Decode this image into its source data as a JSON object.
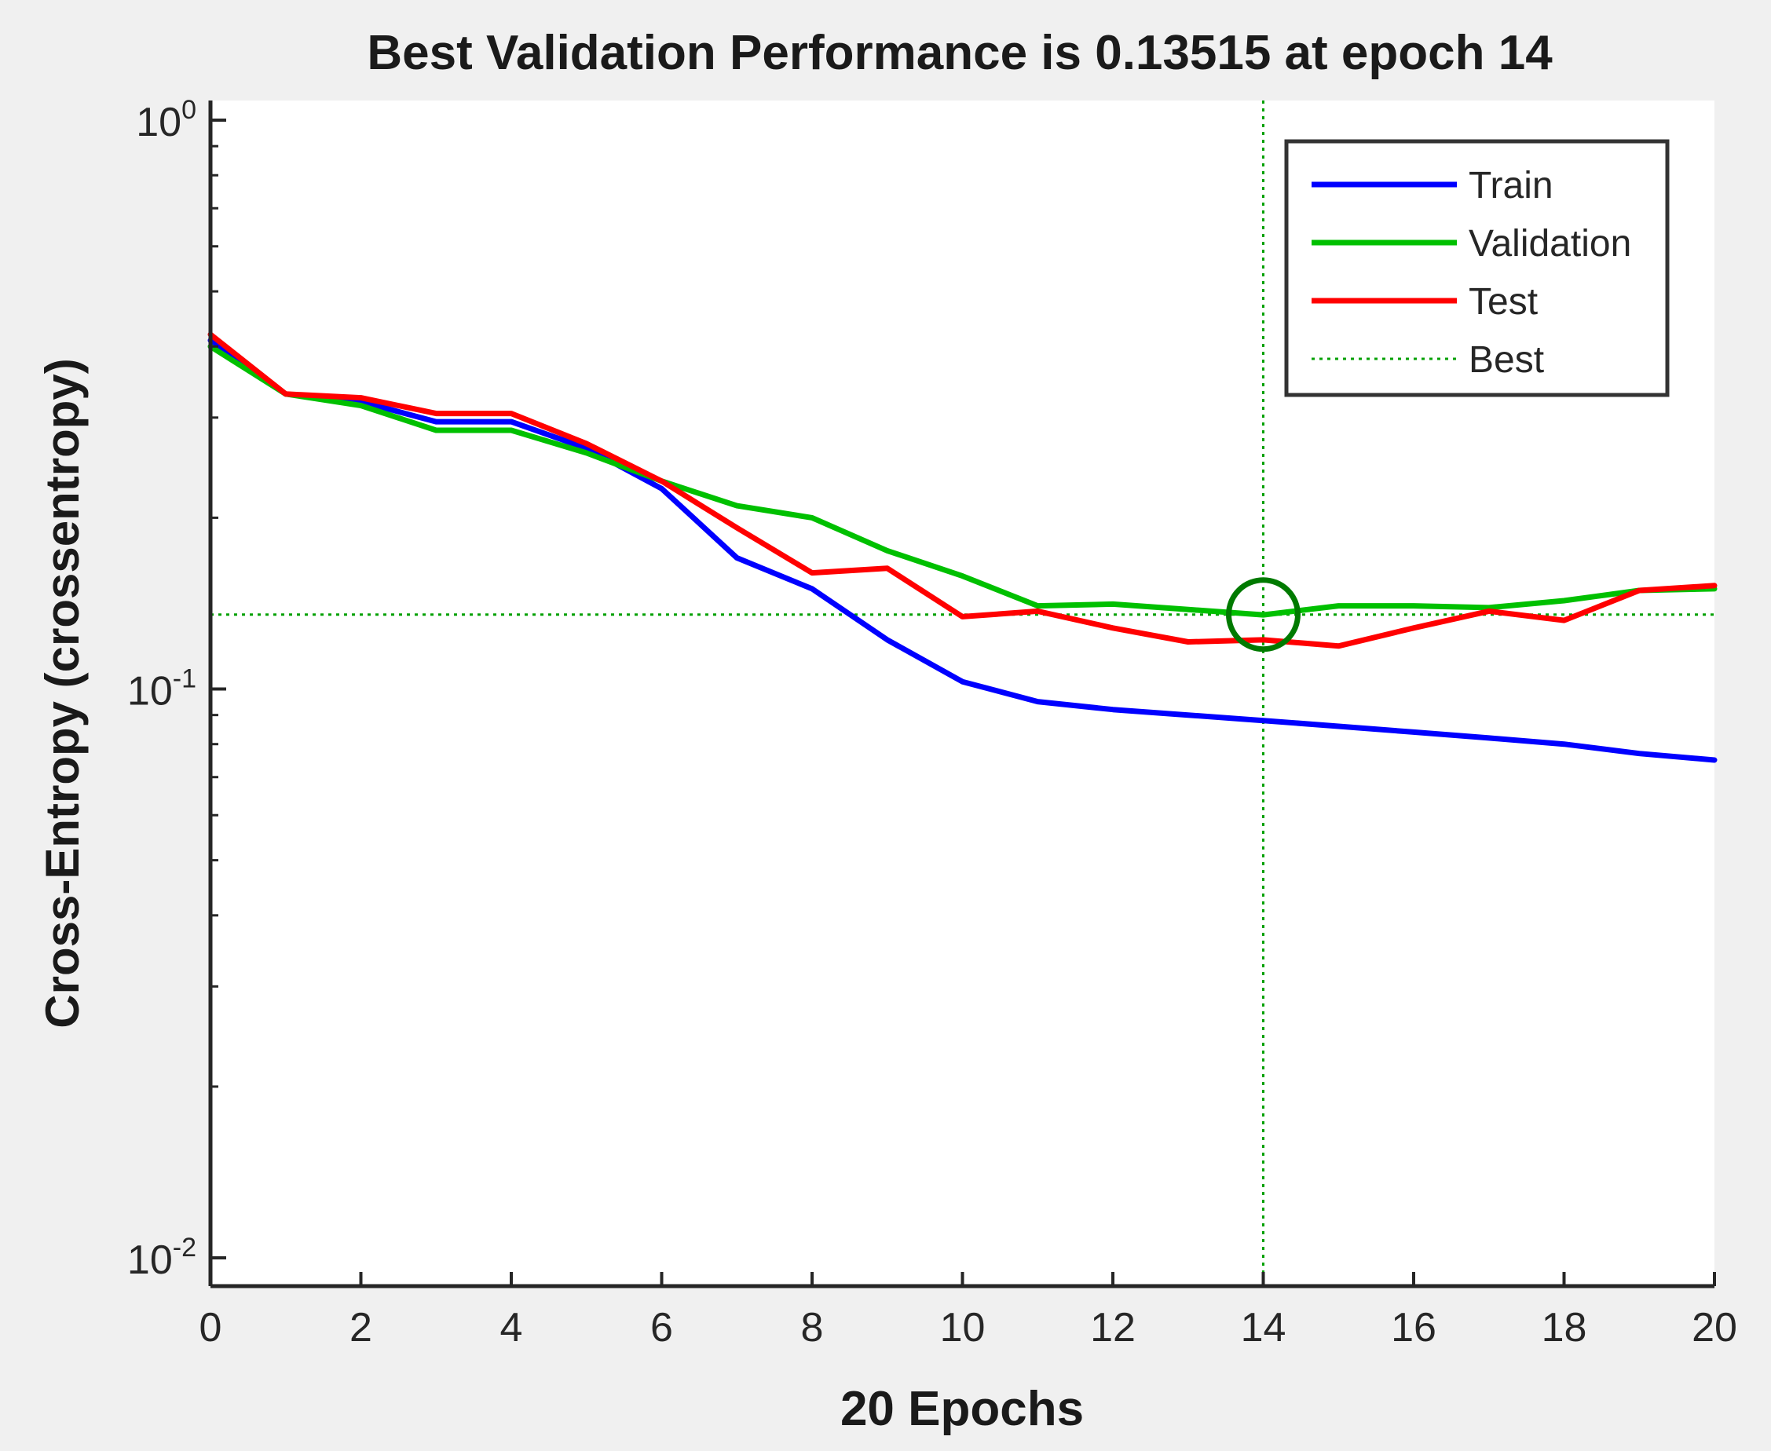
{
  "chart_data": {
    "type": "line",
    "title": "Best Validation Performance is 0.13515 at epoch 14",
    "xlabel": "20 Epochs",
    "ylabel": "Cross-Entropy  (crossentropy)",
    "xlim": [
      0,
      20
    ],
    "ylim": [
      0.01,
      1
    ],
    "yscale": "log",
    "xticks": [
      0,
      2,
      4,
      6,
      8,
      10,
      12,
      14,
      16,
      18,
      20
    ],
    "xtick_labels": [
      "0",
      "2",
      "4",
      "6",
      "8",
      "10",
      "12",
      "14",
      "16",
      "18",
      "20"
    ],
    "yticks": [
      {
        "value": 1,
        "base": "10",
        "exp": "0"
      },
      {
        "value": 0.1,
        "base": "10",
        "exp": "-1"
      },
      {
        "value": 0.01,
        "base": "10",
        "exp": "-2"
      }
    ],
    "legend_position": "top-right",
    "x": [
      0,
      1,
      2,
      3,
      4,
      5,
      6,
      7,
      8,
      9,
      10,
      11,
      12,
      13,
      14,
      15,
      16,
      17,
      18,
      19,
      20
    ],
    "series": [
      {
        "name": "Train",
        "color": "#0000ff",
        "values": [
          0.41,
          0.33,
          0.32,
          0.295,
          0.295,
          0.265,
          0.225,
          0.17,
          0.15,
          0.122,
          0.103,
          0.095,
          0.092,
          0.09,
          0.088,
          0.086,
          0.084,
          0.082,
          0.08,
          0.077,
          0.075
        ]
      },
      {
        "name": "Validation",
        "color": "#00c000",
        "values": [
          0.4,
          0.33,
          0.315,
          0.285,
          0.285,
          0.26,
          0.232,
          0.21,
          0.2,
          0.175,
          0.158,
          0.14,
          0.141,
          0.138,
          0.135,
          0.14,
          0.14,
          0.139,
          0.143,
          0.149,
          0.15
        ]
      },
      {
        "name": "Test",
        "color": "#ff0000",
        "values": [
          0.42,
          0.33,
          0.325,
          0.305,
          0.305,
          0.27,
          0.232,
          0.192,
          0.16,
          0.163,
          0.134,
          0.137,
          0.128,
          0.121,
          0.122,
          0.119,
          0.128,
          0.137,
          0.132,
          0.149,
          0.152
        ]
      }
    ],
    "best": {
      "name": "Best",
      "color": "#00a000",
      "epoch": 14,
      "value": 0.13515
    }
  }
}
